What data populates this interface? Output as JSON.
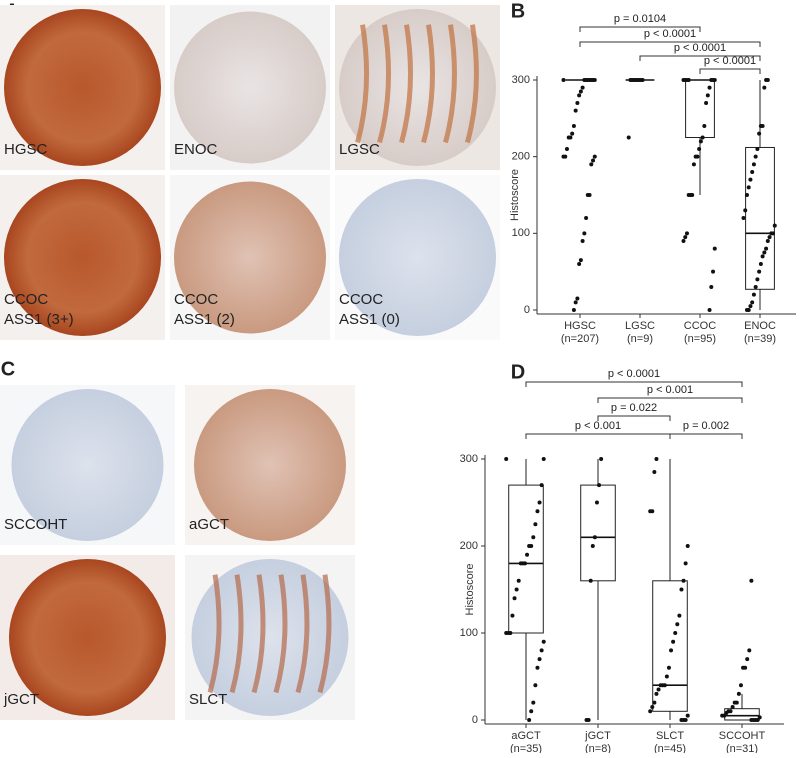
{
  "panels": [
    {
      "label": "A",
      "tiles": [
        {
          "lines": [
            "HGSC"
          ]
        },
        {
          "lines": [
            "ENOC"
          ]
        },
        {
          "lines": [
            "LGSC"
          ]
        },
        {
          "lines": [
            "CCOC",
            "ASS1 (3+)"
          ]
        },
        {
          "lines": [
            "CCOC",
            "ASS1 (2)"
          ]
        },
        {
          "lines": [
            "CCOC",
            "ASS1 (0)"
          ]
        }
      ]
    },
    {
      "label": "C",
      "tiles": [
        {
          "lines": [
            "SCCOHT"
          ]
        },
        {
          "lines": [
            "aGCT"
          ]
        },
        {
          "lines": [
            "jGCT"
          ]
        },
        {
          "lines": [
            "SLCT"
          ]
        }
      ]
    }
  ],
  "chart_data": [
    {
      "type": "box",
      "panel_label": "B",
      "y_label": "Histoscore",
      "categories": [
        "HGSC",
        "LGSC",
        "CCOC",
        "ENOC"
      ],
      "n_labels": [
        "(n=207)",
        "(n=9)",
        "(n=95)",
        "(n=39)"
      ],
      "ylim": [
        0,
        300
      ],
      "yticks": [
        0,
        100,
        200,
        300
      ],
      "boxes": [
        {
          "min": 300,
          "q1": 300,
          "median": 300,
          "q3": 300,
          "max": 300
        },
        {
          "min": 300,
          "q1": 300,
          "median": 300,
          "q3": 300,
          "max": 300
        },
        {
          "min": 150,
          "q1": 225,
          "median": 300,
          "q3": 300,
          "max": 300
        },
        {
          "min": 0,
          "q1": 27,
          "median": 100,
          "q3": 212,
          "max": 300
        }
      ],
      "points": [
        [
          300,
          300,
          300,
          300,
          300,
          300,
          300,
          300,
          290,
          285,
          280,
          270,
          260,
          240,
          230,
          225,
          225,
          210,
          200,
          200,
          200,
          195,
          190,
          150,
          150,
          120,
          100,
          90,
          65,
          60,
          15,
          10,
          0
        ],
        [
          300,
          300,
          300,
          300,
          300,
          300,
          300,
          300,
          225
        ],
        [
          300,
          300,
          300,
          300,
          300,
          300,
          300,
          290,
          280,
          270,
          240,
          225,
          220,
          210,
          200,
          200,
          190,
          150,
          150,
          150,
          100,
          95,
          90,
          80,
          50,
          30,
          0
        ],
        [
          300,
          300,
          290,
          240,
          240,
          230,
          210,
          200,
          190,
          180,
          170,
          160,
          150,
          130,
          120,
          110,
          100,
          100,
          95,
          90,
          80,
          75,
          70,
          60,
          50,
          40,
          30,
          20,
          10,
          5,
          0,
          0
        ]
      ],
      "comparisons": [
        "p = 0.0104",
        "p < 0.0001",
        "p < 0.0001",
        "p < 0.0001"
      ]
    },
    {
      "type": "box",
      "panel_label": "D",
      "y_label": "Histoscore",
      "categories": [
        "aGCT",
        "jGCT",
        "SLCT",
        "SCCOHT"
      ],
      "n_labels": [
        "(n=35)",
        "(n=8)",
        "(n=45)",
        "(n=31)"
      ],
      "ylim": [
        0,
        300
      ],
      "yticks": [
        0,
        100,
        200,
        300
      ],
      "boxes": [
        {
          "min": 0,
          "q1": 100,
          "median": 180,
          "q3": 270,
          "max": 300
        },
        {
          "min": 0,
          "q1": 160,
          "median": 210,
          "q3": 270,
          "max": 300
        },
        {
          "min": 0,
          "q1": 10,
          "median": 40,
          "q3": 160,
          "max": 300
        },
        {
          "min": 0,
          "q1": 0,
          "median": 5,
          "q3": 13,
          "max": 30
        }
      ],
      "points": [
        [
          300,
          300,
          270,
          250,
          240,
          225,
          210,
          200,
          200,
          190,
          180,
          180,
          180,
          160,
          150,
          140,
          120,
          100,
          100,
          100,
          90,
          80,
          70,
          60,
          40,
          20,
          10,
          0
        ],
        [
          300,
          270,
          250,
          210,
          200,
          160,
          0,
          0
        ],
        [
          300,
          285,
          240,
          240,
          200,
          180,
          160,
          150,
          120,
          110,
          100,
          90,
          80,
          60,
          50,
          40,
          40,
          40,
          35,
          30,
          20,
          15,
          10,
          5,
          0,
          0,
          0
        ],
        [
          160,
          80,
          70,
          60,
          60,
          40,
          30,
          20,
          20,
          15,
          10,
          10,
          8,
          5,
          5,
          3,
          0,
          0,
          0,
          0
        ]
      ],
      "comparisons": [
        "p < 0.0001",
        "p < 0.001",
        "p = 0.022",
        "p < 0.001",
        "p = 0.002"
      ]
    }
  ]
}
